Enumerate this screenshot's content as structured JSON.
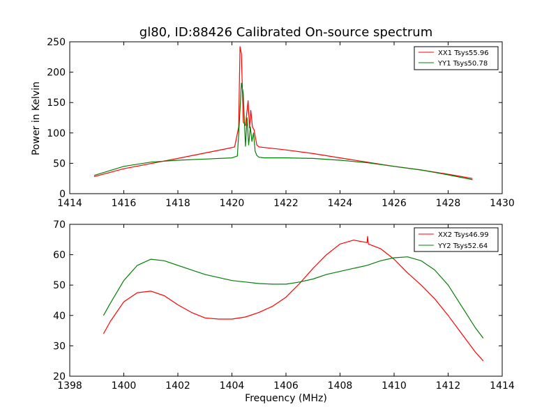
{
  "colors": {
    "xx": "#ff0000",
    "yy": "#008000"
  },
  "chart_data": [
    {
      "type": "line",
      "title": "gl80, ID:88426 Calibrated On-source spectrum",
      "xlabel": "",
      "ylabel": "Power in Kelvin",
      "xlim": [
        1414,
        1430
      ],
      "ylim": [
        0,
        250
      ],
      "xticks": [
        "1414",
        "1416",
        "1418",
        "1420",
        "1422",
        "1424",
        "1426",
        "1428",
        "1430"
      ],
      "yticks": [
        "0",
        "50",
        "100",
        "150",
        "200",
        "250"
      ],
      "legend_loc": "top-right",
      "series": [
        {
          "name": "XX1 Tsys55.96",
          "color": "#ff0000",
          "x": [
            1414.9,
            1416,
            1418,
            1419,
            1419.8,
            1420.1,
            1420.25,
            1420.3,
            1420.35,
            1420.42,
            1420.5,
            1420.6,
            1420.65,
            1420.7,
            1420.76,
            1420.82,
            1420.86,
            1420.92,
            1421.0,
            1421.2,
            1422,
            1423,
            1424,
            1425,
            1426,
            1427,
            1428,
            1428.9
          ],
          "y": [
            28,
            41,
            58,
            67,
            74,
            77,
            110,
            242,
            230,
            118,
            112,
            153,
            108,
            137,
            110,
            105,
            95,
            80,
            77,
            76,
            72,
            66,
            59,
            52,
            45,
            39,
            32,
            25
          ]
        },
        {
          "name": "YY1 Tsys50.78",
          "color": "#008000",
          "x": [
            1414.9,
            1416,
            1417,
            1418,
            1419,
            1420,
            1420.2,
            1420.28,
            1420.35,
            1420.42,
            1420.5,
            1420.56,
            1420.62,
            1420.68,
            1420.74,
            1420.8,
            1420.86,
            1420.92,
            1421.0,
            1421.2,
            1422,
            1423,
            1424,
            1425,
            1426,
            1427,
            1428,
            1428.9
          ],
          "y": [
            30,
            45,
            52,
            55,
            57,
            59,
            62,
            120,
            182,
            165,
            78,
            125,
            80,
            110,
            86,
            100,
            70,
            63,
            60,
            59,
            59,
            58,
            55,
            51,
            45,
            39,
            31,
            23
          ]
        }
      ]
    },
    {
      "type": "line",
      "title": "",
      "xlabel": "Frequency (MHz)",
      "ylabel": "",
      "xlim": [
        1398,
        1414
      ],
      "ylim": [
        20,
        70
      ],
      "xticks": [
        "1398",
        "1400",
        "1402",
        "1404",
        "1406",
        "1408",
        "1410",
        "1412",
        "1414"
      ],
      "yticks": [
        "20",
        "30",
        "40",
        "50",
        "60",
        "70"
      ],
      "legend_loc": "top-right",
      "series": [
        {
          "name": "XX2 Tsys46.99",
          "color": "#ff0000",
          "x": [
            1399.25,
            1399.5,
            1400,
            1400.5,
            1401,
            1401.5,
            1402,
            1402.5,
            1403,
            1403.5,
            1404,
            1404.5,
            1405,
            1405.5,
            1406,
            1406.5,
            1407,
            1407.5,
            1408,
            1408.5,
            1409,
            1409.02,
            1409.05,
            1409.5,
            1410,
            1410.5,
            1411,
            1411.5,
            1412,
            1412.5,
            1413,
            1413.3
          ],
          "y": [
            34,
            38,
            44.5,
            47.5,
            48,
            46.5,
            43.5,
            41,
            39.2,
            38.8,
            38.8,
            39.5,
            41,
            43,
            46,
            50.5,
            55.5,
            60,
            63.5,
            64.8,
            64,
            66,
            63.5,
            62,
            58.5,
            54,
            50,
            45.5,
            40,
            34,
            28,
            25
          ]
        },
        {
          "name": "YY2 Tsys52.64",
          "color": "#008000",
          "x": [
            1399.25,
            1399.5,
            1400,
            1400.5,
            1401,
            1401.5,
            1402,
            1402.5,
            1403,
            1403.5,
            1404,
            1404.5,
            1405,
            1405.5,
            1406,
            1406.5,
            1407,
            1407.5,
            1408,
            1408.5,
            1409,
            1409.5,
            1410,
            1410.5,
            1411,
            1411.5,
            1412,
            1412.5,
            1413,
            1413.3
          ],
          "y": [
            40,
            44,
            51.5,
            56.5,
            58.5,
            58,
            56.5,
            55,
            53.5,
            52.5,
            51.5,
            51,
            50.5,
            50.3,
            50.3,
            51,
            52,
            53.5,
            54.5,
            55.5,
            56.5,
            58,
            59,
            59.3,
            58,
            55,
            50,
            43,
            36,
            32.5
          ]
        }
      ]
    }
  ]
}
